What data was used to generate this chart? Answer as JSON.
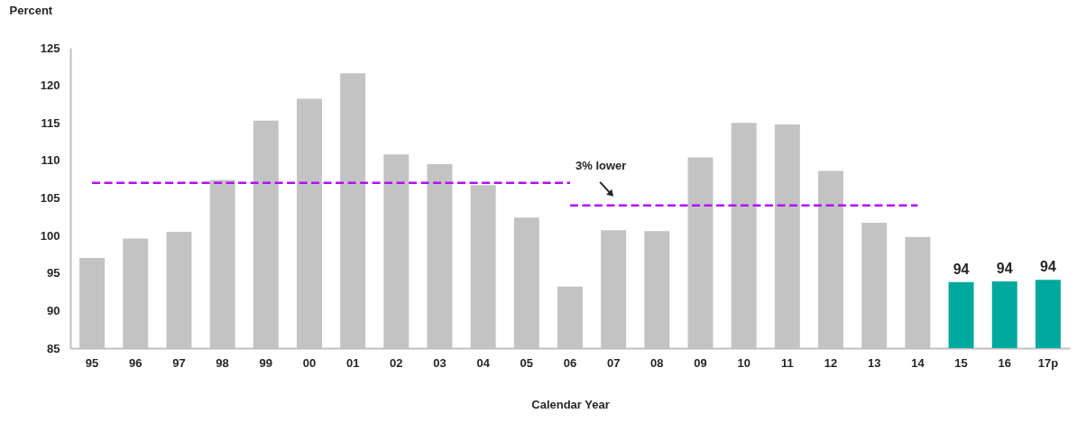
{
  "chart_data": {
    "type": "bar",
    "xlabel": "Calendar Year",
    "ylabel": "Percent",
    "categories": [
      "95",
      "96",
      "97",
      "98",
      "99",
      "00",
      "01",
      "02",
      "03",
      "04",
      "05",
      "06",
      "07",
      "08",
      "09",
      "10",
      "11",
      "12",
      "13",
      "14",
      "15",
      "16",
      "17p"
    ],
    "series": [
      {
        "values": [
          97.0,
          99.6,
          100.5,
          107.4,
          115.3,
          118.2,
          121.6,
          110.8,
          109.5,
          106.7,
          102.4,
          93.2,
          100.7,
          100.6,
          110.4,
          115.0,
          114.8,
          108.6,
          101.7,
          99.8,
          93.8,
          93.9,
          94.1
        ],
        "colors": [
          "#c3c3c3",
          "#c3c3c3",
          "#c3c3c3",
          "#c3c3c3",
          "#c3c3c3",
          "#c3c3c3",
          "#c3c3c3",
          "#c3c3c3",
          "#c3c3c3",
          "#c3c3c3",
          "#c3c3c3",
          "#c3c3c3",
          "#c3c3c3",
          "#c3c3c3",
          "#c3c3c3",
          "#c3c3c3",
          "#c3c3c3",
          "#c3c3c3",
          "#c3c3c3",
          "#c3c3c3",
          "#00a99d",
          "#00a99d",
          "#00a99d"
        ],
        "value_labels": [
          null,
          null,
          null,
          null,
          null,
          null,
          null,
          null,
          null,
          null,
          null,
          null,
          null,
          null,
          null,
          null,
          null,
          null,
          null,
          null,
          "94",
          "94",
          "94"
        ]
      },
      {
        "type": "line",
        "color": "#b30fff",
        "line_style": "dashed",
        "values": [
          107,
          107,
          107,
          107,
          107,
          107,
          107,
          107,
          107,
          107,
          107,
          107,
          null,
          null,
          null,
          null,
          null,
          null,
          null,
          null,
          null,
          null,
          null
        ]
      },
      {
        "type": "line",
        "color": "#b30fff",
        "line_style": "dashed",
        "values": [
          null,
          null,
          null,
          null,
          null,
          null,
          null,
          null,
          null,
          null,
          null,
          104,
          104,
          104,
          104,
          104,
          104,
          104,
          104,
          104,
          null,
          null,
          null
        ]
      }
    ],
    "ylim": [
      85,
      125
    ],
    "yticks": [
      85,
      90,
      95,
      100,
      105,
      110,
      115,
      120,
      125
    ],
    "grid": false,
    "annotations": [
      {
        "text": "3% lower",
        "x": "07",
        "y": 104
      }
    ]
  }
}
